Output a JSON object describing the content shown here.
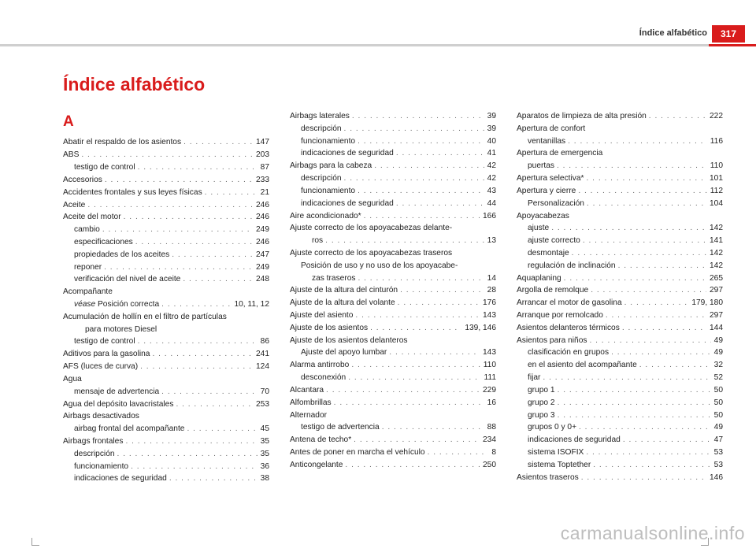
{
  "header": {
    "section": "Índice alfabético",
    "page": "317"
  },
  "title": "Índice alfabético",
  "watermark": "carmanualsonline.info",
  "dotfill": ". . . . . . . . . . . . . . . . . . . . . . . . . . . . . . . . . . . . . . . . . . . . . . . . . . . . . . . . . . . .",
  "columns": [
    [
      {
        "type": "letter",
        "text": "A"
      },
      {
        "label": "Abatir el respaldo de los asientos",
        "page": "147"
      },
      {
        "label": "ABS",
        "page": "203"
      },
      {
        "label": "testigo de control",
        "page": "87",
        "indent": 1
      },
      {
        "label": "Accesorios",
        "page": "233"
      },
      {
        "label": "Accidentes frontales y sus leyes físicas",
        "page": "21"
      },
      {
        "label": "Aceite",
        "page": "246"
      },
      {
        "label": "Aceite del motor",
        "page": "246"
      },
      {
        "label": "cambio",
        "page": "249",
        "indent": 1
      },
      {
        "label": "especificaciones",
        "page": "246",
        "indent": 1
      },
      {
        "label": "propiedades de los aceites",
        "page": "247",
        "indent": 1
      },
      {
        "label": "reponer",
        "page": "249",
        "indent": 1
      },
      {
        "label": "verificación del nivel de aceite",
        "page": "248",
        "indent": 1
      },
      {
        "label": "Acompañante",
        "noleader": true
      },
      {
        "label": "véase Posición correcta",
        "page": "10, 11, 12",
        "indent": 1,
        "italicPrefix": "véase "
      },
      {
        "label": "Acumulación de hollín en el filtro de partículas",
        "noleader": true
      },
      {
        "label": "para motores Diesel",
        "noleader": true,
        "indent": 2
      },
      {
        "label": "testigo de control",
        "page": "86",
        "indent": 1
      },
      {
        "label": "Aditivos para la gasolina",
        "page": "241"
      },
      {
        "label": "AFS (luces de curva)",
        "page": "124"
      },
      {
        "label": "Agua",
        "noleader": true
      },
      {
        "label": "mensaje de advertencia",
        "page": "70",
        "indent": 1
      },
      {
        "label": "Agua del depósito lavacristales",
        "page": "253"
      },
      {
        "label": "Airbags desactivados",
        "noleader": true
      },
      {
        "label": "airbag frontal del acompañante",
        "page": "45",
        "indent": 1
      },
      {
        "label": "Airbags frontales",
        "page": "35"
      },
      {
        "label": "descripción",
        "page": "35",
        "indent": 1
      },
      {
        "label": "funcionamiento",
        "page": "36",
        "indent": 1
      },
      {
        "label": "indicaciones de seguridad",
        "page": "38",
        "indent": 1
      }
    ],
    [
      {
        "label": "Airbags laterales",
        "page": "39"
      },
      {
        "label": "descripción",
        "page": "39",
        "indent": 1
      },
      {
        "label": "funcionamiento",
        "page": "40",
        "indent": 1
      },
      {
        "label": "indicaciones de seguridad",
        "page": "41",
        "indent": 1
      },
      {
        "label": "Airbags para la cabeza",
        "page": "42"
      },
      {
        "label": "descripción",
        "page": "42",
        "indent": 1
      },
      {
        "label": "funcionamiento",
        "page": "43",
        "indent": 1
      },
      {
        "label": "indicaciones de seguridad",
        "page": "44",
        "indent": 1
      },
      {
        "label": "Aire acondicionado*",
        "page": "166"
      },
      {
        "label": "Ajuste correcto de los apoyacabezas delante-",
        "noleader": true
      },
      {
        "label": "ros",
        "page": "13",
        "indent": 2
      },
      {
        "label": "Ajuste correcto de los apoyacabezas traseros",
        "noleader": true
      },
      {
        "label": "Posición de uso y no uso de los apoyacabe-",
        "noleader": true,
        "indent": 1
      },
      {
        "label": "zas traseros",
        "page": "14",
        "indent": 2
      },
      {
        "label": "Ajuste de la altura del cinturón",
        "page": "28"
      },
      {
        "label": "Ajuste de la altura del volante",
        "page": "176"
      },
      {
        "label": "Ajuste del asiento",
        "page": "143"
      },
      {
        "label": "Ajuste de los asientos",
        "page": "139, 146"
      },
      {
        "label": "Ajuste de los asientos delanteros",
        "noleader": true
      },
      {
        "label": "Ajuste del apoyo lumbar",
        "page": "143",
        "indent": 1
      },
      {
        "label": "Alarma antirrobo",
        "page": "110"
      },
      {
        "label": "desconexión",
        "page": "111",
        "indent": 1
      },
      {
        "label": "Alcantara",
        "page": "229"
      },
      {
        "label": "Alfombrillas",
        "page": "16"
      },
      {
        "label": "Alternador",
        "noleader": true
      },
      {
        "label": "testigo de advertencia",
        "page": "88",
        "indent": 1
      },
      {
        "label": "Antena de techo*",
        "page": "234"
      },
      {
        "label": "Antes de poner en marcha el vehículo",
        "page": "8"
      },
      {
        "label": "Anticongelante",
        "page": "250"
      }
    ],
    [
      {
        "label": "Aparatos de limpieza de alta presión",
        "page": "222"
      },
      {
        "label": "Apertura de confort",
        "noleader": true
      },
      {
        "label": "ventanillas",
        "page": "116",
        "indent": 1
      },
      {
        "label": "Apertura de emergencia",
        "noleader": true
      },
      {
        "label": "puertas",
        "page": "110",
        "indent": 1
      },
      {
        "label": "Apertura selectiva*",
        "page": "101"
      },
      {
        "label": "Apertura y cierre",
        "page": "112"
      },
      {
        "label": "Personalización",
        "page": "104",
        "indent": 1
      },
      {
        "label": "Apoyacabezas",
        "noleader": true
      },
      {
        "label": "ajuste",
        "page": "142",
        "indent": 1
      },
      {
        "label": "ajuste correcto",
        "page": "141",
        "indent": 1
      },
      {
        "label": "desmontaje",
        "page": "142",
        "indent": 1
      },
      {
        "label": "regulación de inclinación",
        "page": "142",
        "indent": 1
      },
      {
        "label": "Aquaplaning",
        "page": "265"
      },
      {
        "label": "Argolla de remolque",
        "page": "297"
      },
      {
        "label": "Arrancar el motor de gasolina",
        "page": "179, 180"
      },
      {
        "label": "Arranque por remolcado",
        "page": "297"
      },
      {
        "label": "Asientos delanteros térmicos",
        "page": "144"
      },
      {
        "label": "Asientos para niños",
        "page": "49"
      },
      {
        "label": "clasificación en grupos",
        "page": "49",
        "indent": 1
      },
      {
        "label": "en el asiento del acompañante",
        "page": "32",
        "indent": 1
      },
      {
        "label": "fijar",
        "page": "52",
        "indent": 1
      },
      {
        "label": "grupo 1",
        "page": "50",
        "indent": 1
      },
      {
        "label": "grupo 2",
        "page": "50",
        "indent": 1
      },
      {
        "label": "grupo 3",
        "page": "50",
        "indent": 1
      },
      {
        "label": "grupos 0 y 0+",
        "page": "49",
        "indent": 1
      },
      {
        "label": "indicaciones de seguridad",
        "page": "47",
        "indent": 1
      },
      {
        "label": "sistema ISOFIX",
        "page": "53",
        "indent": 1
      },
      {
        "label": "sistema Toptether",
        "page": "53",
        "indent": 1
      },
      {
        "label": "Asientos traseros",
        "page": "146"
      }
    ]
  ]
}
